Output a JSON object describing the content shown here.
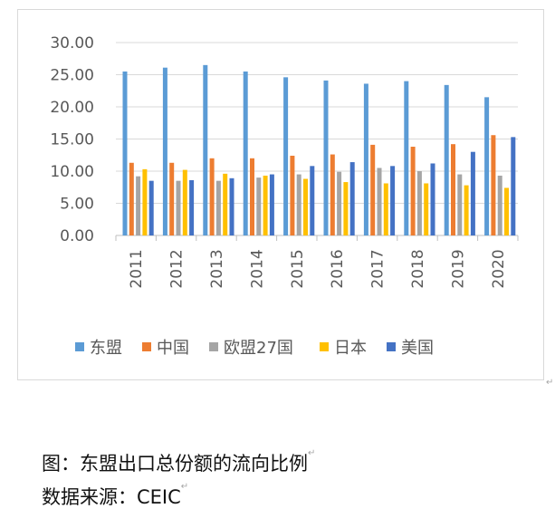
{
  "chart_data": {
    "type": "bar",
    "categories": [
      "2011",
      "2012",
      "2013",
      "2014",
      "2015",
      "2016",
      "2017",
      "2018",
      "2019",
      "2020"
    ],
    "series": [
      {
        "name": "东盟",
        "color": "#5b9bd5",
        "values": [
          25.5,
          26.1,
          26.5,
          25.5,
          24.6,
          24.1,
          23.6,
          24.0,
          23.4,
          21.5
        ]
      },
      {
        "name": "中国",
        "color": "#ed7d31",
        "values": [
          11.3,
          11.3,
          12.0,
          12.0,
          12.4,
          12.6,
          14.1,
          13.8,
          14.2,
          15.6
        ]
      },
      {
        "name": "欧盟27国",
        "color": "#a5a5a5",
        "values": [
          9.2,
          8.5,
          8.5,
          9.0,
          9.5,
          9.9,
          10.5,
          10.0,
          9.5,
          9.3
        ]
      },
      {
        "name": "日本",
        "color": "#ffc000",
        "values": [
          10.3,
          10.2,
          9.6,
          9.3,
          8.8,
          8.3,
          8.1,
          8.1,
          7.8,
          7.4
        ]
      },
      {
        "name": "美国",
        "color": "#4472c4",
        "values": [
          8.5,
          8.6,
          8.9,
          9.5,
          10.8,
          11.4,
          10.8,
          11.2,
          13.0,
          15.3
        ]
      }
    ],
    "yticks": [
      "30.00",
      "25.00",
      "20.00",
      "15.00",
      "10.00",
      "5.00",
      "0.00"
    ],
    "ylim": [
      0,
      30
    ],
    "grid": true,
    "legend_position": "bottom"
  },
  "caption": {
    "title": "图：东盟出口总份额的流向比例",
    "source": "数据来源：CEIC"
  },
  "marks": {
    "return_mark": "↵"
  }
}
